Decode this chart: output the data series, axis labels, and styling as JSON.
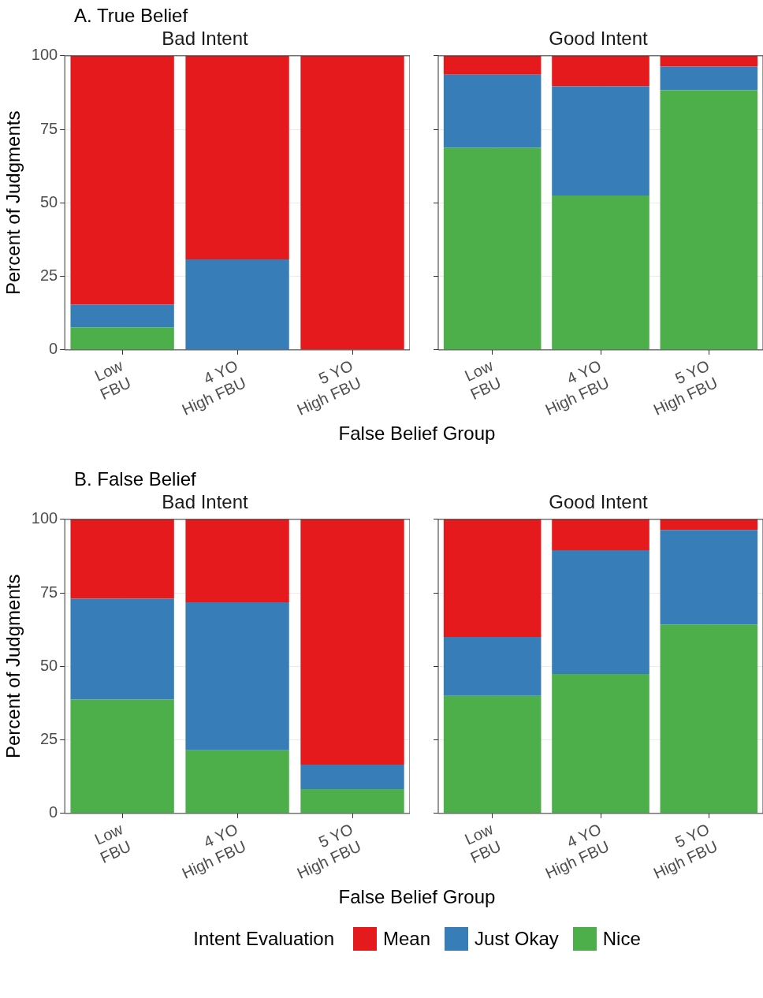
{
  "chart_data": [
    {
      "type": "bar",
      "stacked": true,
      "title": "Bad Intent",
      "annotations": [
        "A. True Belief"
      ],
      "ylabel": "Percent of Judgments",
      "categories": [
        "Low\nFBU",
        "4 YO\nHigh FBU",
        "5 YO\nHigh FBU"
      ],
      "ylim": [
        0,
        100
      ],
      "yticks": [
        0,
        25,
        50,
        75,
        100
      ],
      "grid": true,
      "series": [
        {
          "color": "#4daf4a",
          "values": [
            7.7,
            0,
            0
          ]
        },
        {
          "color": "#377eb8",
          "values": [
            7.7,
            30.8,
            0
          ]
        },
        {
          "color": "#e41a1c",
          "values": [
            84.6,
            69.2,
            100
          ]
        }
      ]
    },
    {
      "type": "bar",
      "stacked": true,
      "title": "Good Intent",
      "xlabel": "False Belief Group",
      "categories": [
        "Low\nFBU",
        "4 YO\nHigh FBU",
        "5 YO\nHigh FBU"
      ],
      "ylim": [
        0,
        100
      ],
      "yticks": [
        0,
        25,
        50,
        75,
        100
      ],
      "grid": true,
      "tick_labels": "x",
      "series": [
        {
          "color": "#4daf4a",
          "values": [
            68.7,
            52.5,
            88.3
          ]
        },
        {
          "color": "#377eb8",
          "values": [
            24.9,
            37.1,
            8
          ]
        },
        {
          "color": "#e41a1c",
          "values": [
            6.4,
            10.4,
            3.7
          ]
        }
      ]
    },
    {
      "type": "bar",
      "stacked": true,
      "title": "Bad Intent",
      "annotations": [
        "B. False Belief"
      ],
      "ylabel": "Percent of Judgments",
      "categories": [
        "Low\nFBU",
        "4 YO\nHigh FBU",
        "5 YO\nHigh FBU"
      ],
      "ylim": [
        0,
        100
      ],
      "yticks": [
        0,
        25,
        50,
        75,
        100
      ],
      "grid": true,
      "series": [
        {
          "color": "#4daf4a",
          "values": [
            38.7,
            21.5,
            8.3
          ]
        },
        {
          "color": "#377eb8",
          "values": [
            34.3,
            50.3,
            8.3
          ]
        },
        {
          "color": "#e41a1c",
          "values": [
            27,
            28.2,
            83.4
          ]
        }
      ]
    },
    {
      "type": "bar",
      "stacked": true,
      "title": "Good Intent",
      "xlabel": "False Belief Group",
      "legend_title": "Intent Evaluation",
      "legend": "bottom",
      "categories": [
        "Low\nFBU",
        "4 YO\nHigh FBU",
        "5 YO\nHigh FBU"
      ],
      "ylim": [
        0,
        100
      ],
      "yticks": [
        0,
        25,
        50,
        75,
        100
      ],
      "grid": true,
      "tick_labels": "x",
      "series": [
        {
          "name": "Nice",
          "color": "#4daf4a",
          "values": [
            40,
            47.4,
            64.2
          ]
        },
        {
          "name": "Just Okay",
          "color": "#377eb8",
          "values": [
            20,
            42.1,
            32.2
          ]
        },
        {
          "name": "Mean",
          "color": "#e41a1c",
          "values": [
            40,
            10.5,
            3.6
          ]
        }
      ]
    }
  ]
}
